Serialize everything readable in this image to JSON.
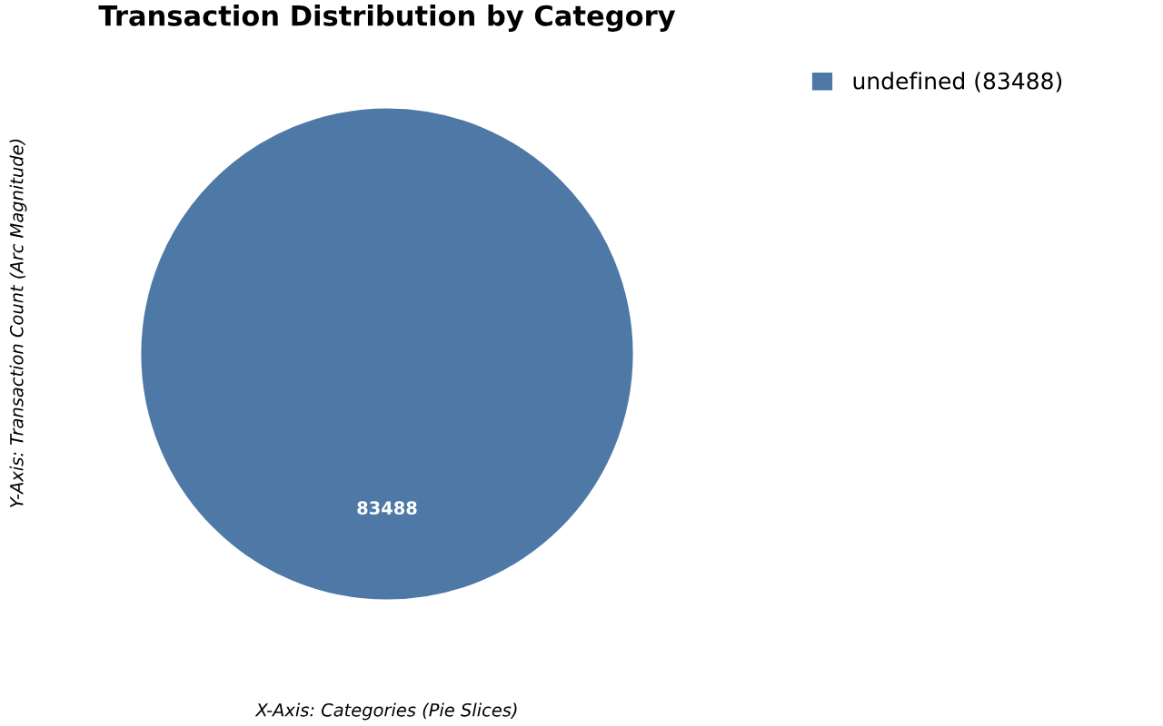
{
  "chart_data": {
    "type": "pie",
    "title": "Transaction Distribution by Category",
    "xlabel": "X-Axis: Categories (Pie Slices)",
    "ylabel": "Y-Axis: Transaction Count (Arc Magnitude)",
    "categories": [
      "undefined (83488)"
    ],
    "values": [
      83488
    ],
    "colors": [
      "#4e79a7"
    ],
    "data_labels": true,
    "legend": "top right"
  }
}
